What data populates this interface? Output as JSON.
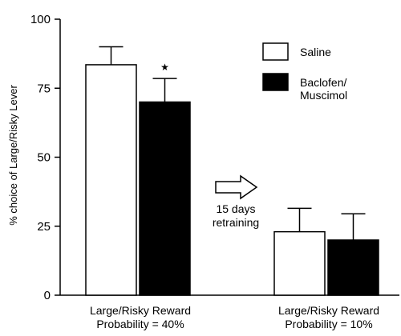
{
  "chart_data": {
    "type": "bar",
    "ylabel": "% choice of Large/Risky  Lever",
    "ylim": [
      0,
      100
    ],
    "yticks": [
      0,
      25,
      50,
      75,
      100
    ],
    "grid": false,
    "legend_position": "top-right",
    "groups": [
      {
        "label_lines": [
          "Large/Risky Reward",
          "Probability = 40%"
        ]
      },
      {
        "label_lines": [
          "Large/Risky Reward",
          "Probability = 10%"
        ]
      }
    ],
    "series": [
      {
        "name": "Saline",
        "color": "#ffffff",
        "values": [
          83.5,
          23
        ],
        "errors": [
          6.5,
          8.5
        ]
      },
      {
        "name": "Baclofen/ Muscimol",
        "name_lines": [
          "Baclofen/",
          "Muscimol"
        ],
        "color": "#000000",
        "values": [
          70,
          20
        ],
        "errors": [
          8.5,
          9.5
        ]
      }
    ],
    "significance": [
      {
        "group": 0,
        "series": 1,
        "symbol": "★"
      }
    ],
    "annotation": {
      "lines": [
        "15 days",
        "retraining"
      ],
      "icon": "right-arrow-icon"
    }
  }
}
